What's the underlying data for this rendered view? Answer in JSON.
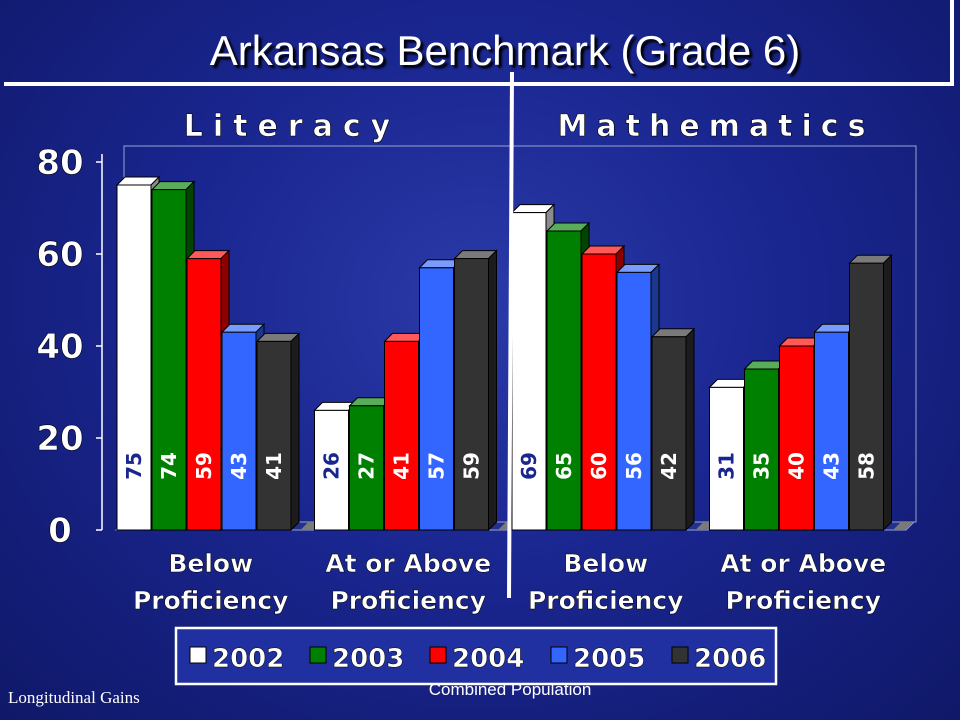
{
  "chart_data": {
    "type": "bar",
    "title": "Arkansas Benchmark (Grade 6)",
    "panels": [
      "Literacy",
      "Mathematics"
    ],
    "categories": [
      "Below Proficiency",
      "At or Above Proficiency",
      "Below Proficiency",
      "At or Above Proficiency"
    ],
    "series": [
      {
        "name": "2002",
        "color": "#ffffff",
        "values": [
          75,
          26,
          69,
          31
        ]
      },
      {
        "name": "2003",
        "color": "#008000",
        "values": [
          74,
          27,
          65,
          35
        ]
      },
      {
        "name": "2004",
        "color": "#ff0000",
        "values": [
          59,
          41,
          60,
          40
        ]
      },
      {
        "name": "2005",
        "color": "#3366ff",
        "values": [
          43,
          57,
          56,
          43
        ]
      },
      {
        "name": "2006",
        "color": "#333333",
        "values": [
          41,
          59,
          42,
          58
        ]
      }
    ],
    "ylim": [
      0,
      80
    ],
    "yticks": [
      0,
      20,
      40,
      60,
      80
    ],
    "grid": false,
    "legend_position": "bottom",
    "footer_left": "Longitudinal Gains",
    "footer_center": "Combined Population"
  }
}
